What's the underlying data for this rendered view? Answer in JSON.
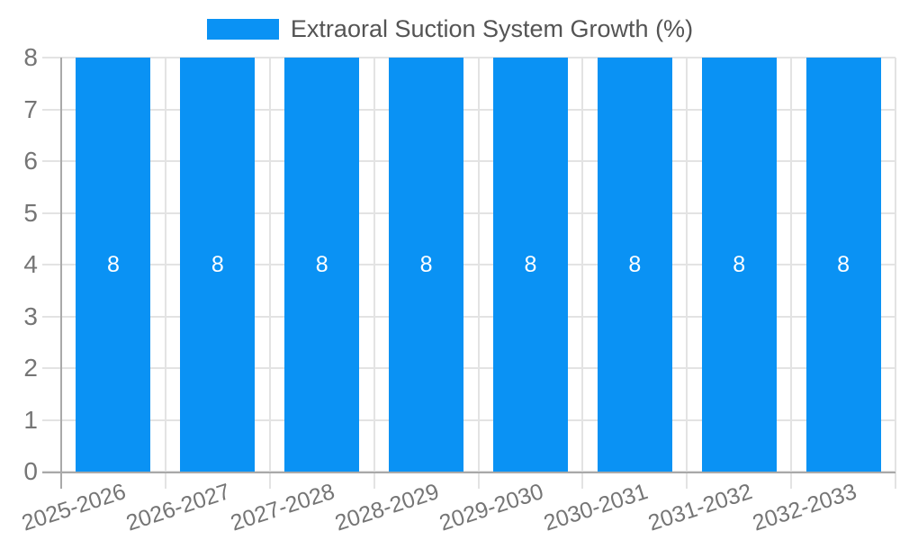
{
  "chart_data": {
    "type": "bar",
    "title": "",
    "legend": "Extraoral Suction System Growth (%)",
    "legend_position": "top",
    "categories": [
      "2025-2026",
      "2026-2027",
      "2027-2028",
      "2028-2029",
      "2029-2030",
      "2030-2031",
      "2031-2032",
      "2032-2033"
    ],
    "series": [
      {
        "name": "Extraoral Suction System Growth (%)",
        "values": [
          8,
          8,
          8,
          8,
          8,
          8,
          8,
          8
        ]
      }
    ],
    "bar_value_labels": [
      "8",
      "8",
      "8",
      "8",
      "8",
      "8",
      "8",
      "8"
    ],
    "xlabel": "",
    "ylabel": "",
    "ylim": [
      0,
      8
    ],
    "yticks": [
      0,
      1,
      2,
      3,
      4,
      5,
      6,
      7,
      8
    ],
    "grid": true,
    "colors": {
      "bar": "#0a92f4",
      "bar_label": "#ffffff",
      "grid": "#e3e3e3",
      "axis": "#a9a9a9",
      "tick_label": "#757575",
      "legend_text": "#545454",
      "background": "#ffffff"
    }
  }
}
